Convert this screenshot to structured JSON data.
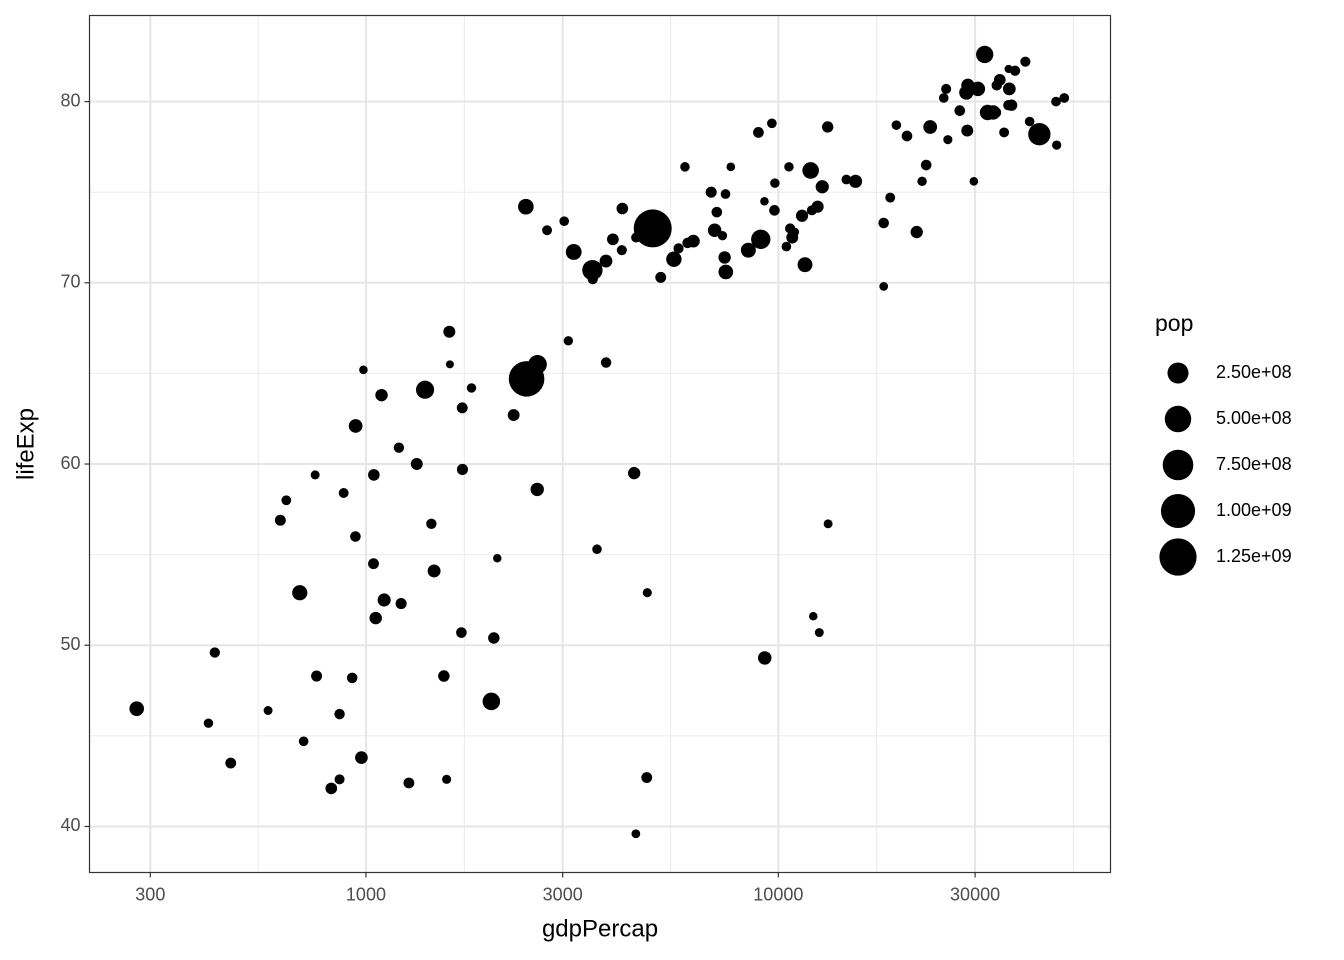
{
  "chart_data": {
    "type": "scatter",
    "x_label": "gdpPercap",
    "y_label": "lifeExp",
    "x_scale": "log",
    "grid": true,
    "color": "#000000",
    "xlim": [
      213.6,
      63900
    ],
    "ylim": [
      37.46,
      84.75
    ],
    "xticks": [
      300,
      1000,
      3000,
      10000,
      30000
    ],
    "yticks": [
      40,
      50,
      60,
      70,
      80
    ],
    "size_title": "pop",
    "size_ticks": [
      {
        "value": 250000000,
        "label": "2.50e+08"
      },
      {
        "value": 500000000,
        "label": "5.00e+08"
      },
      {
        "value": 750000000,
        "label": "7.50e+08"
      },
      {
        "value": 1000000000,
        "label": "1.00e+09"
      },
      {
        "value": 1250000000,
        "label": "1.25e+09"
      }
    ],
    "x": [
      975,
      5937,
      6223,
      4797,
      12779,
      34435,
      36126,
      29796,
      1391,
      33693,
      1441,
      3822,
      7446,
      12570,
      9066,
      10681,
      1217,
      430,
      1714,
      2042,
      36319,
      706,
      1704,
      13172,
      4959,
      7007,
      986,
      278,
      3633,
      9645,
      1545,
      14619,
      8948,
      22833,
      35278,
      2082,
      6025,
      6873,
      5581,
      5728,
      12154,
      641,
      691,
      33207,
      30470,
      13206,
      753,
      32170,
      1328,
      27538,
      5186,
      943,
      579,
      1202,
      3548,
      39725,
      18009,
      36181,
      2452,
      3541,
      11606,
      4471,
      40676,
      25523,
      28570,
      7321,
      31656,
      4519,
      1463,
      1593,
      23348,
      47307,
      10461,
      1569,
      415,
      12058,
      1045,
      759,
      12452,
      1043,
      1803,
      10957,
      11978,
      3096,
      9254,
      3820,
      824,
      944,
      4811,
      1091,
      36798,
      25185,
      2749,
      620,
      2014,
      49357,
      22316,
      2606,
      9809,
      4173,
      7409,
      3190,
      15390,
      20510,
      19329,
      7670,
      10808,
      863,
      1598,
      21655,
      1712,
      9787,
      863,
      47143,
      18678,
      25768,
      926,
      9270,
      28821,
      3970,
      2602,
      4513,
      33860,
      37506,
      4185,
      28718,
      1107,
      7458,
      883,
      18009,
      7093,
      8458,
      1056,
      33203,
      42952,
      10611,
      11416,
      2442,
      3025,
      2281,
      1271,
      470
    ],
    "y": [
      43.8,
      76.4,
      72.3,
      42.7,
      75.3,
      81.2,
      79.8,
      75.6,
      64.1,
      79.4,
      56.7,
      65.6,
      74.9,
      50.7,
      72.4,
      73.0,
      52.3,
      49.6,
      59.7,
      50.4,
      80.7,
      44.7,
      50.7,
      78.6,
      73.0,
      72.9,
      65.2,
      46.5,
      55.3,
      78.8,
      48.3,
      75.7,
      78.3,
      76.5,
      78.3,
      54.8,
      72.2,
      75.0,
      71.3,
      71.9,
      51.6,
      58.0,
      52.9,
      79.3,
      80.7,
      56.7,
      59.4,
      79.4,
      60.0,
      79.5,
      70.3,
      56.0,
      46.4,
      60.9,
      70.2,
      82.2,
      73.3,
      81.8,
      64.7,
      70.7,
      71.0,
      59.5,
      78.9,
      80.7,
      80.5,
      72.6,
      82.6,
      72.5,
      54.1,
      67.3,
      78.6,
      77.6,
      72.0,
      42.6,
      45.7,
      74.0,
      59.4,
      48.3,
      74.2,
      54.5,
      64.2,
      72.8,
      76.2,
      66.8,
      74.5,
      71.2,
      42.1,
      62.1,
      52.9,
      63.8,
      79.8,
      80.2,
      72.9,
      56.9,
      46.9,
      80.2,
      75.6,
      65.5,
      75.5,
      71.8,
      71.4,
      71.7,
      75.6,
      78.1,
      78.7,
      76.4,
      72.5,
      46.2,
      65.5,
      72.8,
      63.1,
      74.0,
      42.6,
      80.0,
      74.7,
      77.9,
      48.2,
      49.3,
      80.9,
      72.4,
      58.6,
      39.6,
      80.9,
      81.7,
      74.1,
      78.4,
      52.5,
      70.6,
      58.4,
      69.8,
      73.9,
      71.8,
      51.5,
      79.4,
      78.2,
      76.4,
      73.7,
      74.2,
      73.4,
      62.7,
      42.4,
      43.5
    ],
    "size": [
      31889923,
      3600523,
      33333216,
      12420476,
      40301927,
      20434176,
      8199783,
      708573,
      150448339,
      10392226,
      8078314,
      9119152,
      4552198,
      1639131,
      190010647,
      7322858,
      14326203,
      8390505,
      14131858,
      17696293,
      33390141,
      4369038,
      10238807,
      16284741,
      1318683096,
      44227550,
      710960,
      64606759,
      3800610,
      4133884,
      18013409,
      4493312,
      11416987,
      10228744,
      5468120,
      496374,
      9319622,
      13755680,
      80264543,
      6939688,
      551201,
      4906585,
      76511887,
      5238460,
      61083916,
      1454867,
      1688359,
      82400996,
      22873338,
      10706290,
      12572928,
      9947814,
      1472041,
      8502814,
      7483763,
      6980412,
      9956108,
      301931,
      1110396331,
      223547000,
      69453570,
      27499638,
      4109086,
      6426679,
      58147733,
      2780132,
      127467972,
      6053193,
      35610177,
      23301725,
      49044790,
      2505559,
      3921278,
      2012649,
      3193942,
      6036914,
      19167654,
      13327079,
      24821286,
      12031795,
      3270065,
      1250882,
      108700891,
      2874127,
      684736,
      33757175,
      19951656,
      47761980,
      2055080,
      28901790,
      16570613,
      4115771,
      5675356,
      12894865,
      135031164,
      4627926,
      3204897,
      169270617,
      3242173,
      6667147,
      28674757,
      91077287,
      38518241,
      10642836,
      3942491,
      798094,
      22276056,
      8860588,
      199579,
      27601038,
      12267493,
      10150265,
      6144562,
      4553009,
      5447502,
      2009245,
      9118773,
      43997828,
      40448191,
      20378239,
      42292929,
      1133066,
      9031088,
      7554661,
      19314747,
      23174294,
      38139640,
      65068149,
      5701579,
      1056608,
      10276158,
      71158647,
      29170398,
      60776238,
      301139947,
      3447496,
      26084662,
      85262356,
      4018332,
      22211743,
      11746035,
      12311143
    ]
  }
}
